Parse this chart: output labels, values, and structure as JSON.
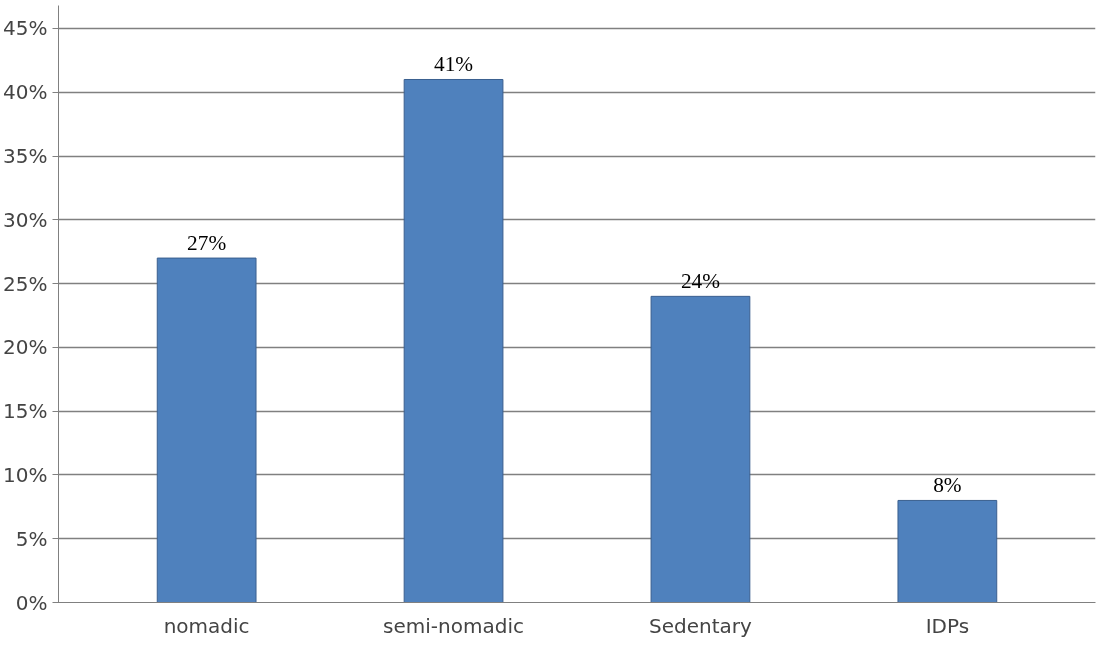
{
  "chart_data": {
    "type": "bar",
    "categories": [
      "nomadic",
      "semi-nomadic",
      "Sedentary",
      "IDPs"
    ],
    "values": [
      27,
      41,
      24,
      8
    ],
    "value_labels": [
      "27%",
      "41%",
      "24%",
      "8%"
    ],
    "color": "#4f81bd",
    "ylim": [
      0,
      45
    ],
    "yticks": [
      {
        "value": 0,
        "label": "0%"
      },
      {
        "value": 5,
        "label": "5%"
      },
      {
        "value": 10,
        "label": "10%"
      },
      {
        "value": 15,
        "label": "15%"
      },
      {
        "value": 20,
        "label": "20%"
      },
      {
        "value": 25,
        "label": "25%"
      },
      {
        "value": 30,
        "label": "30%"
      },
      {
        "value": 35,
        "label": "35%"
      },
      {
        "value": 40,
        "label": "40%"
      },
      {
        "value": 45,
        "label": "45%"
      }
    ],
    "grid": "y"
  }
}
